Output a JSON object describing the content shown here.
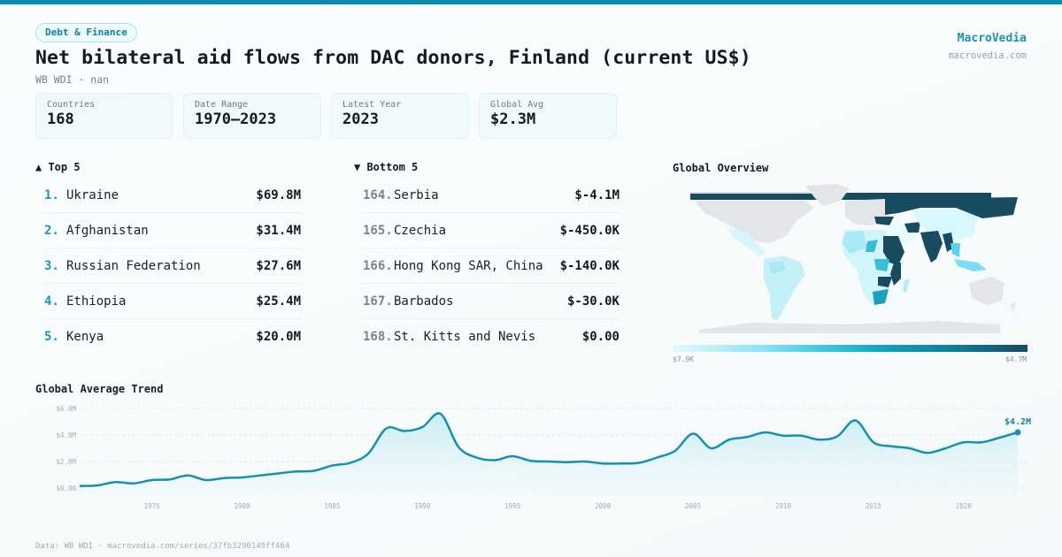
{
  "header": {
    "category_badge": "Debt & Finance",
    "title": "Net bilateral aid flows from DAC donors, Finland (current US$)",
    "subtitle": "WB WDI · nan",
    "brand_name": "MacroVedia",
    "brand_url": "macrovedia.com"
  },
  "stats": [
    {
      "label": "Countries",
      "value": "168"
    },
    {
      "label": "Date Range",
      "value": "1970–2023"
    },
    {
      "label": "Latest Year",
      "value": "2023"
    },
    {
      "label": "Global Avg",
      "value": "$2.3M"
    }
  ],
  "top5": {
    "title": "▲ Top 5",
    "items": [
      {
        "rank": "1.",
        "name": "Ukraine",
        "value": "$69.8M"
      },
      {
        "rank": "2.",
        "name": "Afghanistan",
        "value": "$31.4M"
      },
      {
        "rank": "3.",
        "name": "Russian Federation",
        "value": "$27.6M"
      },
      {
        "rank": "4.",
        "name": "Ethiopia",
        "value": "$25.4M"
      },
      {
        "rank": "5.",
        "name": "Kenya",
        "value": "$20.0M"
      }
    ]
  },
  "bottom5": {
    "title": "▼ Bottom 5",
    "items": [
      {
        "rank": "164.",
        "name": "Serbia",
        "value": "$-4.1M"
      },
      {
        "rank": "165.",
        "name": "Czechia",
        "value": "$-450.0K"
      },
      {
        "rank": "166.",
        "name": "Hong Kong SAR, China",
        "value": "$-140.0K"
      },
      {
        "rank": "167.",
        "name": "Barbados",
        "value": "$-30.0K"
      },
      {
        "rank": "168.",
        "name": "St. Kitts and Nevis",
        "value": "$0.00"
      }
    ]
  },
  "map": {
    "title": "Global Overview",
    "legend_min": "$7.9K",
    "legend_max": "$4.7M",
    "colors": {
      "no_data": "#e3e5e8",
      "low": "#e3f9fd",
      "mid": "#35c3de",
      "high": "#184b60"
    }
  },
  "trend": {
    "title": "Global Average Trend",
    "end_label": "$4.2M"
  },
  "footer": {
    "source": "Data: WB WDI · macrovedia.com/series/37fb3290149ff464"
  },
  "colors": {
    "accent": "#0b8cb0",
    "line": "#1590b0",
    "brand": "#1a93b5"
  },
  "chart_data": {
    "type": "area",
    "title": "Global Average Trend",
    "xlabel": "",
    "ylabel": "",
    "x": [
      1971,
      1972,
      1973,
      1974,
      1975,
      1976,
      1977,
      1978,
      1979,
      1980,
      1981,
      1982,
      1983,
      1984,
      1985,
      1986,
      1987,
      1988,
      1989,
      1990,
      1991,
      1992,
      1993,
      1994,
      1995,
      1996,
      1997,
      1998,
      1999,
      2000,
      2001,
      2002,
      2003,
      2004,
      2005,
      2006,
      2007,
      2008,
      2009,
      2010,
      2011,
      2012,
      2013,
      2014,
      2015,
      2016,
      2017,
      2018,
      2019,
      2020,
      2021,
      2022,
      2023
    ],
    "series": [
      {
        "name": "Global Average (US$ M)",
        "values": [
          0.15,
          0.2,
          0.45,
          0.35,
          0.6,
          0.65,
          0.95,
          0.6,
          0.75,
          0.8,
          0.95,
          1.1,
          1.25,
          1.3,
          1.7,
          1.9,
          2.6,
          4.5,
          4.3,
          4.6,
          5.6,
          3.1,
          2.3,
          2.1,
          2.4,
          2.05,
          2.0,
          1.95,
          2.0,
          1.85,
          1.85,
          1.9,
          2.3,
          2.8,
          4.1,
          3.0,
          3.65,
          3.85,
          4.2,
          3.95,
          3.95,
          3.65,
          3.9,
          5.1,
          3.45,
          3.15,
          3.0,
          2.65,
          3.0,
          3.45,
          3.45,
          3.8,
          4.2
        ]
      }
    ],
    "y_ticks": [
      "$0.00",
      "$2.0M",
      "$4.0M",
      "$6.0M"
    ],
    "x_ticks": [
      "1975",
      "1980",
      "1985",
      "1990",
      "1995",
      "2000",
      "2005",
      "2010",
      "2015",
      "2020"
    ],
    "ylim": [
      0,
      6
    ],
    "grid": true,
    "annotations": [
      {
        "x": 2023,
        "y": 4.2,
        "text": "$4.2M"
      }
    ]
  }
}
